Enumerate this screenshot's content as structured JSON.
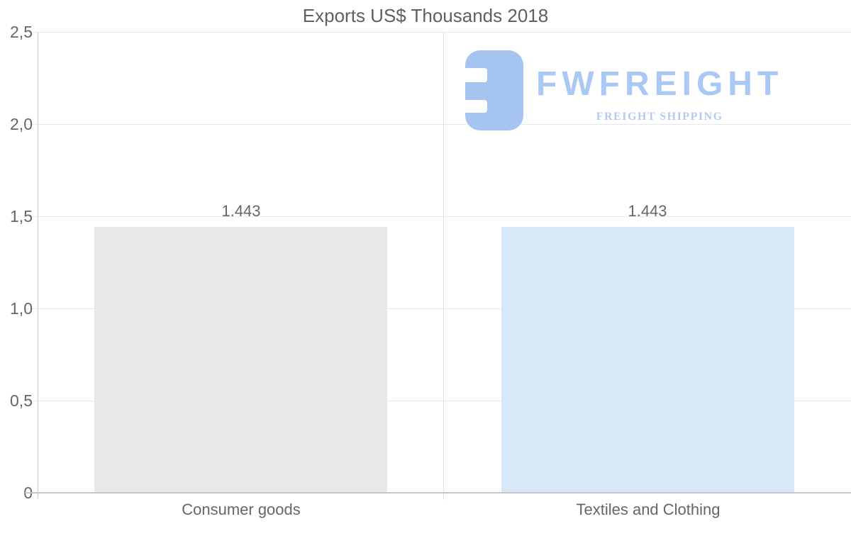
{
  "page": {
    "background": "#ffffff"
  },
  "chart_data": {
    "type": "bar",
    "title": "Exports US$ Thousands 2018",
    "categories": [
      "Consumer goods",
      "Textiles and Clothing"
    ],
    "values": [
      1.443,
      1.443
    ],
    "value_labels": [
      "1.443",
      "1.443"
    ],
    "bar_colors": [
      "#e8e8e8",
      "#d9e8f9"
    ],
    "xlabel": "",
    "ylabel": "",
    "ylim": [
      0,
      2.5
    ],
    "yticks": [
      {
        "label": "0",
        "value": 0
      },
      {
        "label": "0,5",
        "value": 0.5
      },
      {
        "label": "1,0",
        "value": 1.0
      },
      {
        "label": "1,5",
        "value": 1.5
      },
      {
        "label": "2,0",
        "value": 2.0
      },
      {
        "label": "2,5",
        "value": 2.5
      }
    ],
    "grid": true,
    "legend": false
  },
  "watermark": {
    "wordmark": "FWFREIGHT",
    "tagline": "FREIGHT SHIPPING",
    "icon": "fwfreight-logo-icon",
    "icon_color": "#a6c4f0",
    "wordmark_color": "#a9c8f3",
    "tagline_color": "#b2cbf0"
  },
  "colors": {
    "title_text": "#5f6062",
    "axis_text": "#666666",
    "value_text": "#666666",
    "gridline": "#e8e8e8",
    "divider_gridline": "#e3e3e3",
    "y_axis_line": "#cccccc",
    "x_axis_line": "#c6c6c6"
  }
}
